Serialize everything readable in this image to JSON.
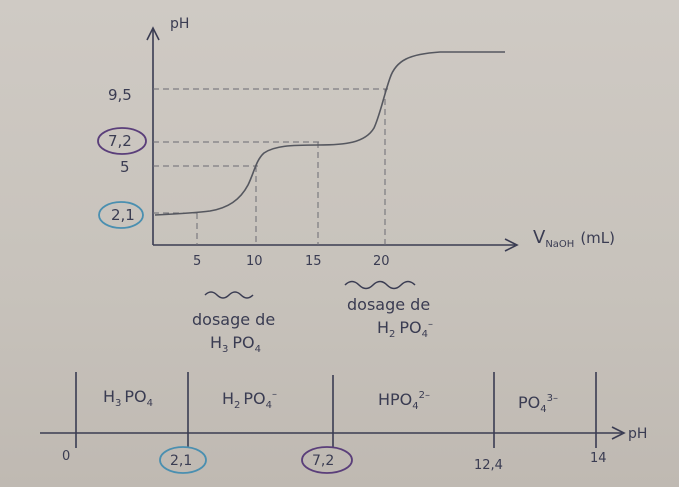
{
  "curve": {
    "y_axis_label": "pH",
    "x_axis_label": "V",
    "x_axis_subscript": "NaOH",
    "x_axis_unit": "(mL)",
    "y_ticks": [
      "9,5",
      "7,2",
      "5",
      "2,1"
    ],
    "x_ticks": [
      "5",
      "10",
      "15",
      "20"
    ],
    "circled_values": [
      "7,2",
      "2,1"
    ],
    "annotation_1": {
      "line1": "dosage de",
      "line2_main": "H",
      "line2_sub": "3",
      "line2_rest": "PO",
      "line2_sub2": "4"
    },
    "annotation_2": {
      "line1": "dosage de",
      "line2_main": "H",
      "line2_sub": "2",
      "line2_rest": "PO",
      "line2_sub2": "4",
      "line2_sup": "–"
    }
  },
  "predominance": {
    "axis_label": "pH",
    "ticks": [
      "0",
      "2,1",
      "7,2",
      "12,4",
      "14"
    ],
    "species": [
      {
        "main": "H",
        "sub": "3",
        "rest": "PO",
        "sub2": "4",
        "sup": ""
      },
      {
        "main": "H",
        "sub": "2",
        "rest": "PO",
        "sub2": "4",
        "sup": "–"
      },
      {
        "main": "",
        "sub": "",
        "rest": "HPO",
        "sub2": "4",
        "sup": "2–"
      },
      {
        "main": "",
        "sub": "",
        "rest": "PO",
        "sub2": "4",
        "sup": "3–"
      }
    ]
  },
  "colors": {
    "ink": "#3a3c52",
    "pencil": "#6b6b73",
    "circle_purple": "#5a3e7a",
    "circle_blue": "#4a8fb0"
  }
}
